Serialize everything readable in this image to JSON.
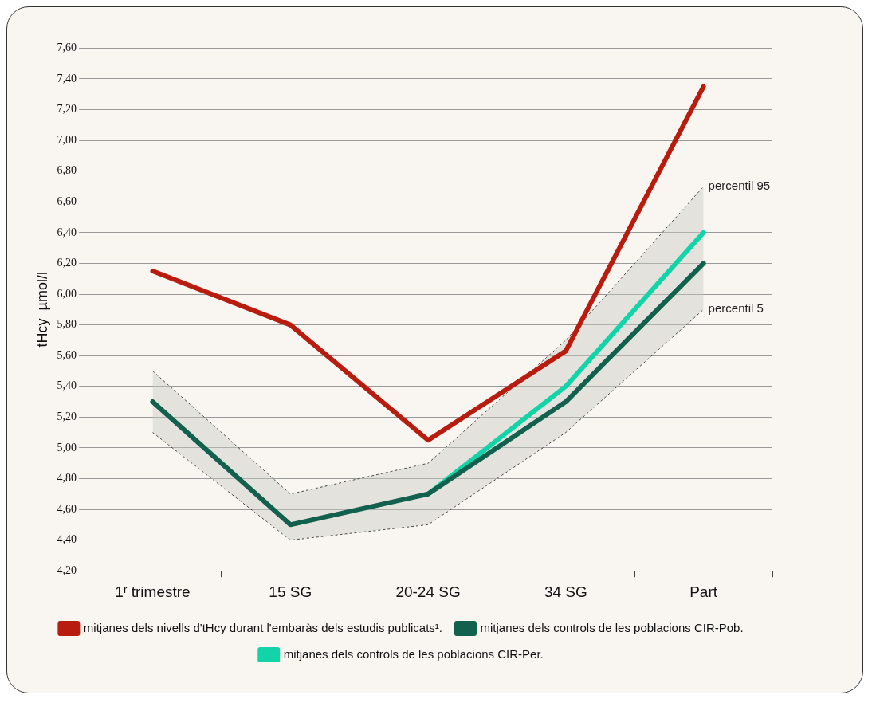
{
  "chart_data": {
    "type": "line",
    "ylabel": "tHcy  µmol/l",
    "categories": [
      "1ʳ trimestre",
      "15 SG",
      "20-24 SG",
      "34 SG",
      "Part"
    ],
    "ylim": [
      4.2,
      7.6
    ],
    "yticks": [
      {
        "value": 4.2,
        "label": "4,20"
      },
      {
        "value": 4.4,
        "label": "4,40"
      },
      {
        "value": 4.6,
        "label": "4,60"
      },
      {
        "value": 4.8,
        "label": "4,80"
      },
      {
        "value": 5.0,
        "label": "5,00"
      },
      {
        "value": 5.2,
        "label": "5,20"
      },
      {
        "value": 5.4,
        "label": "5,40"
      },
      {
        "value": 5.6,
        "label": "5,60"
      },
      {
        "value": 5.8,
        "label": "5,80"
      },
      {
        "value": 6.0,
        "label": "6,00"
      },
      {
        "value": 6.2,
        "label": "6,20"
      },
      {
        "value": 6.4,
        "label": "6,40"
      },
      {
        "value": 6.6,
        "label": "6,60"
      },
      {
        "value": 6.8,
        "label": "6,80"
      },
      {
        "value": 7.0,
        "label": "7,00"
      },
      {
        "value": 7.2,
        "label": "7,20"
      },
      {
        "value": 7.4,
        "label": "7,40"
      },
      {
        "value": 7.6,
        "label": "7,60"
      }
    ],
    "grid": "y",
    "marker": "none",
    "legend": "bottom",
    "series": [
      {
        "name": "mitjanes dels nivells d'tHcy durant l'embaràs dels estudis publicats¹.",
        "color": "#b81c0e",
        "values": [
          6.15,
          5.8,
          5.05,
          5.63,
          7.35
        ]
      },
      {
        "name": "mitjanes dels controls de les poblacions CIR-Pob.",
        "color": "#12604e",
        "values": [
          5.3,
          4.5,
          4.7,
          5.3,
          6.2
        ],
        "lower": [
          5.1,
          4.4,
          4.5,
          5.1,
          5.9
        ],
        "upper": [
          5.5,
          4.7,
          4.9,
          5.7,
          6.7
        ]
      },
      {
        "name": "mitjanes dels controls de les poblacions CIR-Per.",
        "color": "#12d4a8",
        "values": [
          null,
          null,
          4.7,
          5.4,
          6.4
        ]
      }
    ],
    "annotations": [
      {
        "text": "percentil 95",
        "x": "Part",
        "y": 6.7
      },
      {
        "text": "percentil 5",
        "x": "Part",
        "y": 5.9
      }
    ]
  }
}
